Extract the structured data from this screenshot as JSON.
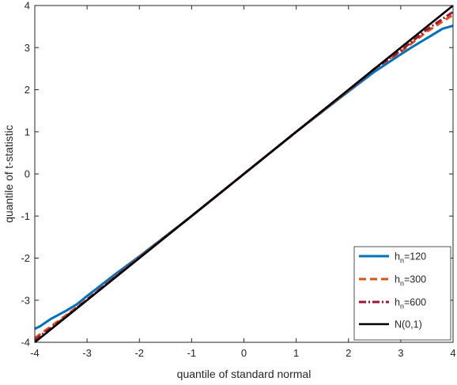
{
  "chart_data": {
    "type": "line",
    "title": "",
    "xlabel": "quantile of standard normal",
    "ylabel": "quantile of t-statistic",
    "xlim": [
      -4,
      4
    ],
    "ylim": [
      -4,
      4
    ],
    "xticks": [
      -4,
      -3,
      -2,
      -1,
      0,
      1,
      2,
      3,
      4
    ],
    "yticks": [
      -4,
      -3,
      -2,
      -1,
      0,
      1,
      2,
      3,
      4
    ],
    "grid": false,
    "legend_position": "bottom-right",
    "series": [
      {
        "name": "h_n=120",
        "legend_main": "h",
        "legend_sub": "n",
        "legend_rest": "=120",
        "color": "#0072BD",
        "dash": "solid",
        "x": [
          -4,
          -3.9,
          -3.7,
          -3.4,
          -3.2,
          -3.0,
          -2.5,
          -2.0,
          -1.0,
          0,
          1.0,
          2.0,
          2.5,
          3.0,
          3.2,
          3.4,
          3.6,
          3.8,
          4.0
        ],
        "y": [
          -3.68,
          -3.62,
          -3.45,
          -3.25,
          -3.1,
          -2.9,
          -2.42,
          -1.96,
          -1.0,
          0,
          1.0,
          1.96,
          2.43,
          2.84,
          3.0,
          3.15,
          3.3,
          3.45,
          3.52
        ]
      },
      {
        "name": "h_n=300",
        "legend_main": "h",
        "legend_sub": "n",
        "legend_rest": "=300",
        "color": "#D95319",
        "dash": "dashed",
        "x": [
          -4,
          -3.8,
          -3.5,
          -3.0,
          -2.5,
          -2.0,
          -1.0,
          0,
          1.0,
          2.0,
          2.5,
          3.0,
          3.5,
          4.0
        ],
        "y": [
          -3.9,
          -3.72,
          -3.45,
          -2.98,
          -2.48,
          -1.98,
          -1.0,
          0,
          1.0,
          1.98,
          2.5,
          2.9,
          3.38,
          3.78
        ]
      },
      {
        "name": "h_n=600",
        "legend_main": "h",
        "legend_sub": "n",
        "legend_rest": "=600",
        "color": "#A2142F",
        "dash": "dashdot",
        "x": [
          -4,
          -3.8,
          -3.5,
          -3.0,
          -2.5,
          -2.0,
          -1.0,
          0,
          1.0,
          2.0,
          2.5,
          3.0,
          3.5,
          4.0
        ],
        "y": [
          -3.95,
          -3.76,
          -3.48,
          -2.99,
          -2.49,
          -1.99,
          -1.0,
          0,
          1.0,
          1.99,
          2.5,
          2.93,
          3.43,
          3.85
        ]
      },
      {
        "name": "N(0,1)",
        "legend_main": "N(0,1)",
        "legend_sub": "",
        "legend_rest": "",
        "color": "#000000",
        "dash": "solid",
        "x": [
          -4,
          4
        ],
        "y": [
          -4,
          4
        ]
      }
    ]
  }
}
